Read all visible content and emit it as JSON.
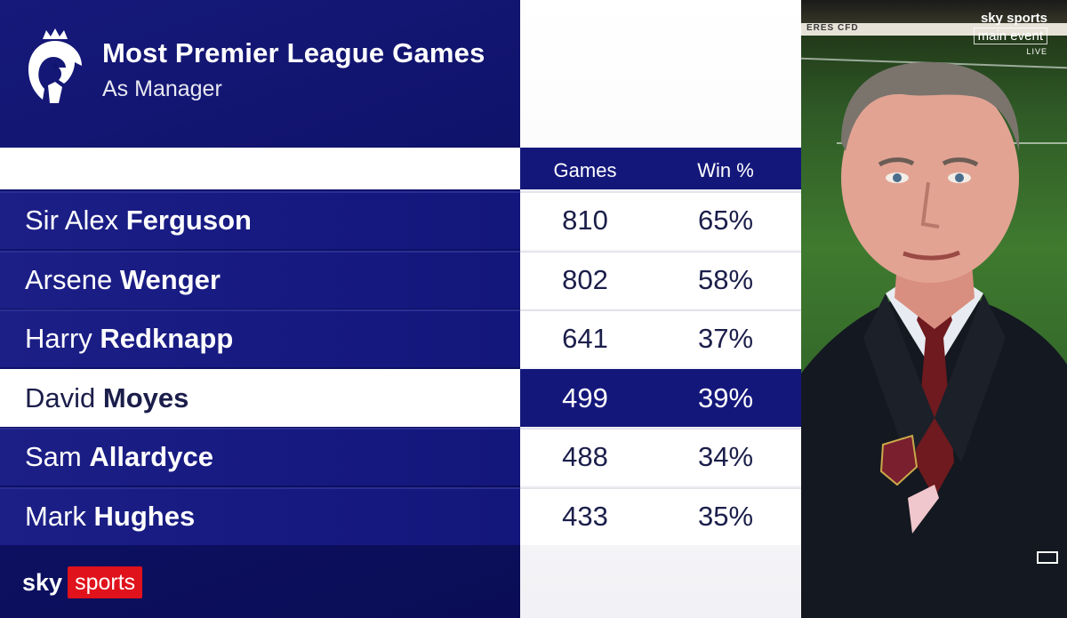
{
  "header": {
    "title": "Most Premier League Games",
    "subtitle": "As Manager"
  },
  "columns": {
    "games": "Games",
    "win": "Win %"
  },
  "rows": [
    {
      "first": "Sir Alex",
      "last": "Ferguson",
      "games": "810",
      "win": "65%",
      "highlight": false
    },
    {
      "first": "Arsene",
      "last": "Wenger",
      "games": "802",
      "win": "58%",
      "highlight": false
    },
    {
      "first": "Harry",
      "last": "Redknapp",
      "games": "641",
      "win": "37%",
      "highlight": false
    },
    {
      "first": "David",
      "last": "Moyes",
      "games": "499",
      "win": "39%",
      "highlight": true
    },
    {
      "first": "Sam",
      "last": "Allardyce",
      "games": "488",
      "win": "34%",
      "highlight": false
    },
    {
      "first": "Mark",
      "last": "Hughes",
      "games": "433",
      "win": "35%",
      "highlight": false
    }
  ],
  "branding": {
    "sky": "sky",
    "sports": "sports"
  },
  "watermark": {
    "line1": "sky sports",
    "line2": "main event",
    "line3": "LIVE"
  },
  "photo": {
    "board_text": "ERES    CFD"
  },
  "colors": {
    "navy": "#14177a",
    "sky_red": "#e0121b",
    "text_dark": "#1b1e4a"
  }
}
